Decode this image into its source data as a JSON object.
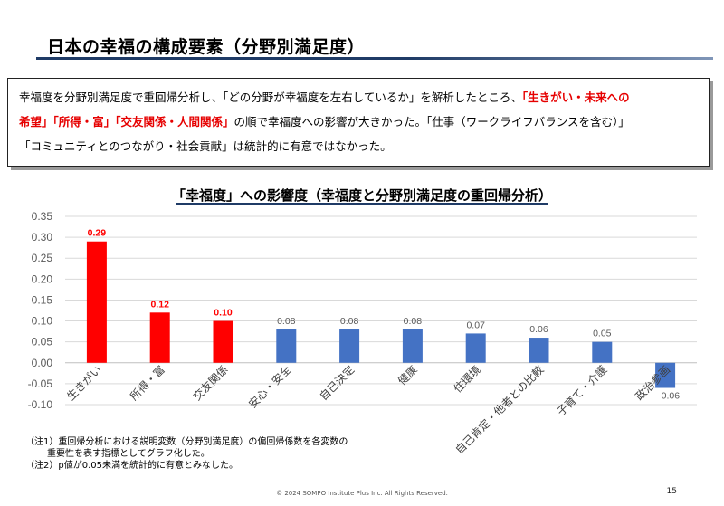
{
  "slide": {
    "title": "日本の幸福の構成要素（分野別満足度）",
    "summary_lines": [
      [
        {
          "text": "幸福度を分野別満足度で重回帰分析し、「どの分野が幸福度を左右しているか」を解析したところ、",
          "hl": false
        },
        {
          "text": "「生きがい・未来への",
          "hl": true
        }
      ],
      [
        {
          "text": "希望」「所得・富」「交友関係・人間関係」",
          "hl": true
        },
        {
          "text": "の順で幸福度への影響が大きかった。「仕事（ワークライフバランスを含む）」",
          "hl": false
        }
      ],
      [
        {
          "text": "「コミュニティとのつながり・社会貢献」は統計的に有意ではなかった。",
          "hl": false
        }
      ]
    ],
    "chart_title": "「幸福度」への影響度（幸福度と分野別満足度の重回帰分析）",
    "notes": [
      "（注1）重回帰分析における説明変数（分野別満足度）の偏回帰係数を各変数の",
      "重要性を表す指標としてグラフ化した。",
      "（注2）p値が0.05未満を統計的に有意とみなした。"
    ],
    "footer": "© 2024 SOMPO Institute Plus Inc. All Rights Reserved.",
    "page_number": "15"
  },
  "chart_data": {
    "type": "bar",
    "title": "「幸福度」への影響度（幸福度と分野別満足度の重回帰分析）",
    "categories": [
      "生きがい",
      "所得・富",
      "交友関係",
      "安心・安全",
      "自己決定",
      "健康",
      "住環境",
      "自己肯定・他者との比較",
      "子育て・介護",
      "政治参画"
    ],
    "values": [
      0.29,
      0.12,
      0.1,
      0.08,
      0.08,
      0.08,
      0.07,
      0.06,
      0.05,
      -0.06
    ],
    "labels": [
      "0.29",
      "0.12",
      "0.10",
      "0.08",
      "0.08",
      "0.08",
      "0.07",
      "0.06",
      "0.05",
      "-0.06"
    ],
    "significant": [
      true,
      true,
      true,
      false,
      false,
      false,
      false,
      false,
      false,
      false
    ],
    "colors": {
      "significant": "#ff0000",
      "other": "#4472c4",
      "grid": "#d9d9d9",
      "axis": "#595959",
      "label_other": "#595959"
    },
    "yticks": [
      "0.35",
      "0.30",
      "0.25",
      "0.20",
      "0.15",
      "0.10",
      "0.05",
      "0.00",
      "-0.05",
      "-0.10"
    ],
    "ylim": [
      -0.1,
      0.35
    ],
    "xlabel": "",
    "ylabel": "",
    "grid": true,
    "legend": "none"
  }
}
